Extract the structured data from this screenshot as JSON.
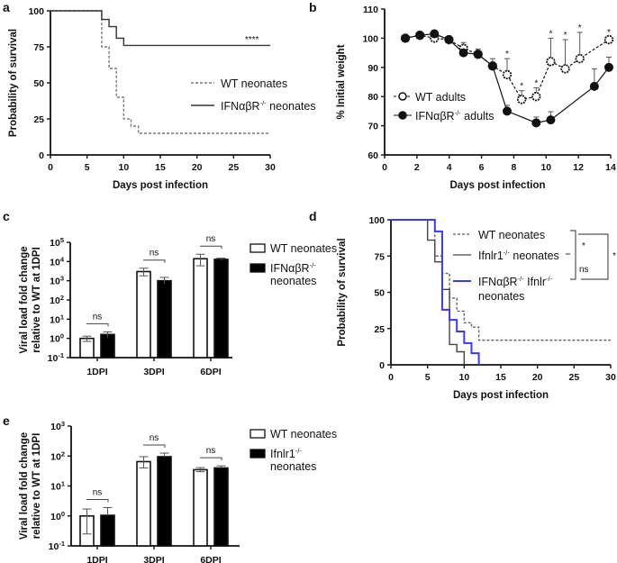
{
  "chart_data": [
    {
      "panel": "a",
      "type": "line",
      "xlabel": "Days post infection",
      "ylabel": "Probability of survival",
      "xlim": [
        0,
        30
      ],
      "ylim": [
        0,
        100
      ],
      "xticks": [
        "0",
        "5",
        "10",
        "15",
        "20",
        "25",
        "30"
      ],
      "yticks": [
        "0",
        "25",
        "50",
        "75",
        "100"
      ],
      "legend_position": "right",
      "series": [
        {
          "name": {
            "text": "WT neonates",
            "sup": "",
            "after": ""
          },
          "style": "dashed",
          "color": "#777777",
          "steps": [
            [
              0,
              100
            ],
            [
              7,
              75
            ],
            [
              8,
              60
            ],
            [
              9,
              40
            ],
            [
              10,
              25
            ],
            [
              11,
              20
            ],
            [
              12,
              15
            ],
            [
              30,
              15
            ]
          ]
        },
        {
          "name": {
            "text": "IFNαβR",
            "sup": "-/-",
            "after": " neonates"
          },
          "style": "solid",
          "color": "#333333",
          "steps": [
            [
              0,
              100
            ],
            [
              7,
              94
            ],
            [
              8,
              89
            ],
            [
              9,
              81
            ],
            [
              10,
              76
            ],
            [
              30,
              76
            ]
          ]
        }
      ],
      "annotations": [
        {
          "text": "****",
          "x": 27.5,
          "y": 78
        }
      ]
    },
    {
      "panel": "b",
      "type": "line",
      "xlabel": "Days post infection",
      "ylabel": "% Initial weight",
      "xlim": [
        0,
        14
      ],
      "ylim": [
        60,
        110
      ],
      "xticks": [
        "0",
        "2",
        "4",
        "6",
        "8",
        "10",
        "12",
        "14"
      ],
      "yticks": [
        "60",
        "70",
        "80",
        "90",
        "100",
        "110"
      ],
      "legend_position": "left",
      "series": [
        {
          "name": {
            "text": "WT adults",
            "sup": "",
            "after": ""
          },
          "style": "dashed",
          "marker": "open-circle",
          "x": [
            0,
            1,
            2,
            3,
            4,
            5,
            6,
            7,
            8,
            9,
            10,
            11,
            12,
            14
          ],
          "y": [
            100,
            101,
            100,
            99.5,
            96.5,
            94.5,
            90.5,
            87.5,
            79,
            80,
            92,
            89.5,
            93,
            99.5
          ],
          "err": [
            0,
            1,
            0.5,
            0.5,
            2,
            1,
            1,
            5.5,
            3,
            3,
            8,
            10,
            9,
            1
          ]
        },
        {
          "name": {
            "text": "IFNαβR",
            "sup": "-/-",
            "after": " adults"
          },
          "style": "solid",
          "marker": "filled-circle",
          "x": [
            0,
            1,
            2,
            3,
            4,
            5,
            6,
            7,
            9,
            10,
            13,
            14
          ],
          "y": [
            100,
            101,
            101.5,
            99.5,
            95,
            94.5,
            90.5,
            75,
            71,
            72,
            83.5,
            90
          ],
          "err": [
            0,
            1.2,
            0.8,
            0.5,
            0.8,
            1.8,
            2.5,
            2,
            2,
            2.8,
            6,
            3.5
          ]
        }
      ],
      "significance": {
        "label": "*",
        "x": [
          7,
          8,
          9,
          10,
          11,
          12,
          14
        ]
      }
    },
    {
      "panel": "c",
      "type": "bar",
      "ylabel": [
        "Viral load fold  change",
        "relative to WT at 1DPI"
      ],
      "yscale": "log",
      "ylim": [
        0.1,
        100000
      ],
      "yticks": [
        {
          "base": "10",
          "exp": "-1"
        },
        {
          "base": "10",
          "exp": "0"
        },
        {
          "base": "10",
          "exp": "1"
        },
        {
          "base": "10",
          "exp": "2"
        },
        {
          "base": "10",
          "exp": "3"
        },
        {
          "base": "10",
          "exp": "4"
        },
        {
          "base": "10",
          "exp": "5"
        }
      ],
      "categories": [
        "1DPI",
        "3DPI",
        "6DPI"
      ],
      "legend_position": "right",
      "series": [
        {
          "name": {
            "text": "WT neonates",
            "sup": "",
            "after": ""
          },
          "fill": "#ffffff",
          "values": [
            1,
            3000,
            14000
          ],
          "err_low": [
            0.7,
            1800,
            6000
          ],
          "err_high": [
            1.3,
            4500,
            24000
          ]
        },
        {
          "name": {
            "text": "IFNαβR",
            "sup": "-/-",
            "after": "",
            "line2": "neonates"
          },
          "fill": "#000000",
          "values": [
            1.6,
            1000,
            13000
          ],
          "err_low": [
            1.1,
            700,
            12000
          ],
          "err_high": [
            2.2,
            1500,
            15000
          ]
        }
      ],
      "significance": [
        "ns",
        "ns",
        "ns"
      ]
    },
    {
      "panel": "d",
      "type": "line",
      "xlabel": "Days post infection",
      "ylabel": "Probability of survival",
      "xlim": [
        0,
        30
      ],
      "ylim": [
        0,
        100
      ],
      "xticks": [
        "0",
        "5",
        "10",
        "15",
        "20",
        "25",
        "30"
      ],
      "yticks": [
        "0",
        "25",
        "50",
        "75",
        "100"
      ],
      "legend_position": "top-right",
      "series": [
        {
          "name": {
            "text": "WT neonates",
            "sup": "",
            "after": ""
          },
          "style": "dashed",
          "color": "#666666",
          "steps": [
            [
              0,
              100
            ],
            [
              6,
              75
            ],
            [
              7,
              63
            ],
            [
              8,
              46
            ],
            [
              9,
              37
            ],
            [
              10,
              29
            ],
            [
              11,
              26
            ],
            [
              12,
              17
            ],
            [
              30,
              17
            ]
          ]
        },
        {
          "name": {
            "text": "Ifnlr1",
            "sup": "-/-",
            "after": " neonates"
          },
          "style": "solid",
          "color": "#444444",
          "steps": [
            [
              0,
              100
            ],
            [
              5,
              86
            ],
            [
              6,
              71
            ],
            [
              7,
              52
            ],
            [
              8,
              14
            ],
            [
              9,
              9
            ],
            [
              10,
              0
            ]
          ]
        },
        {
          "name": {
            "text": "IFNαβR",
            "sup": "-/-",
            "after": " Ifnlr",
            "sup2": "-/-",
            "line2": "neonates"
          },
          "style": "solid",
          "color": "#3a3af0",
          "steps": [
            [
              0,
              100
            ],
            [
              6,
              92
            ],
            [
              7,
              38
            ],
            [
              8,
              31
            ],
            [
              9,
              23
            ],
            [
              10,
              15
            ],
            [
              11,
              8
            ],
            [
              12,
              0
            ]
          ]
        }
      ],
      "significance": [
        "*",
        "ns",
        "*"
      ]
    },
    {
      "panel": "e",
      "type": "bar",
      "ylabel": [
        "Viral load fold  change",
        "relative to WT at 1DPI"
      ],
      "yscale": "log",
      "ylim": [
        0.1,
        1000
      ],
      "yticks": [
        {
          "base": "10",
          "exp": "-1"
        },
        {
          "base": "10",
          "exp": "0"
        },
        {
          "base": "10",
          "exp": "1"
        },
        {
          "base": "10",
          "exp": "2"
        },
        {
          "base": "10",
          "exp": "3"
        }
      ],
      "categories": [
        "1DPI",
        "3DPI",
        "6DPI"
      ],
      "legend_position": "right",
      "series": [
        {
          "name": {
            "text": "WT neonates",
            "sup": "",
            "after": ""
          },
          "fill": "#ffffff",
          "values": [
            1,
            65,
            35
          ],
          "err_low": [
            0.25,
            40,
            30
          ],
          "err_high": [
            1.7,
            95,
            41
          ]
        },
        {
          "name": {
            "text": "Ifnlr1",
            "sup": "-/-",
            "after": "",
            "line2": "neonates"
          },
          "fill": "#000000",
          "values": [
            1.05,
            95,
            40
          ],
          "err_low": [
            1.05,
            95,
            40
          ],
          "err_high": [
            1.9,
            125,
            47
          ]
        }
      ],
      "significance": [
        "ns",
        "ns",
        "ns"
      ]
    }
  ]
}
